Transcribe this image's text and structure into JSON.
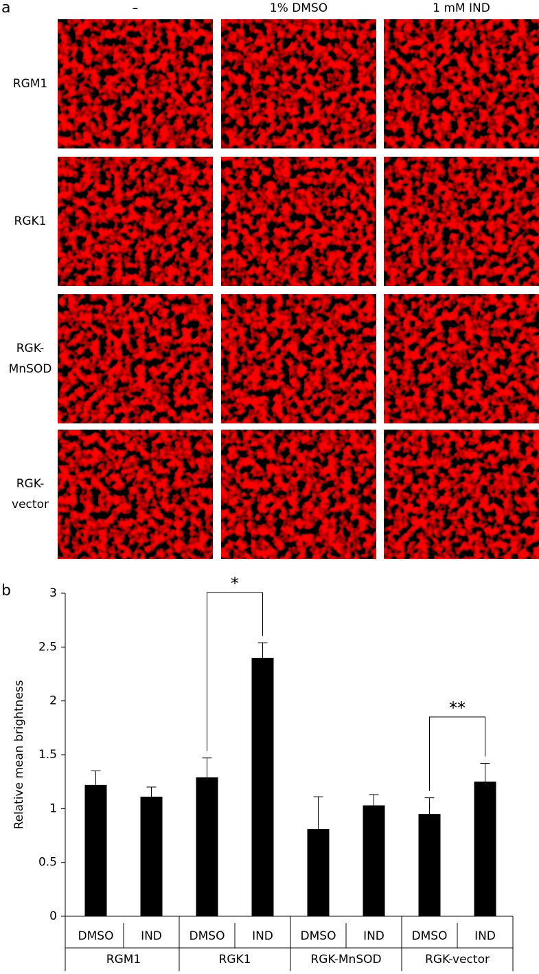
{
  "panel_a": {
    "label": "a",
    "column_headers": [
      "–",
      "1% DMSO",
      "1 mM IND"
    ],
    "row_labels": [
      [
        "RGM1"
      ],
      [
        "RGK1"
      ],
      [
        "RGK-",
        "MnSOD"
      ],
      [
        "RGK-",
        "vector"
      ]
    ]
  },
  "chart_data": {
    "type": "bar",
    "panel_label": "b",
    "y_label": "Relative mean brightness",
    "categories": [
      "DMSO",
      "IND",
      "DMSO",
      "IND",
      "DMSO",
      "IND",
      "DMSO",
      "IND"
    ],
    "groups": [
      "RGM1",
      "RGK1",
      "RGK-MnSOD",
      "RGK-vector"
    ],
    "values": [
      1.22,
      1.11,
      1.29,
      2.4,
      0.81,
      1.03,
      0.95,
      1.25
    ],
    "errors": [
      0.13,
      0.09,
      0.18,
      0.14,
      0.3,
      0.1,
      0.15,
      0.17
    ],
    "color": "#000000",
    "ylim": [
      0,
      3
    ],
    "yticks": [
      0,
      0.5,
      1,
      1.5,
      2,
      2.5,
      3
    ],
    "annotations": [
      "*",
      "**"
    ]
  }
}
